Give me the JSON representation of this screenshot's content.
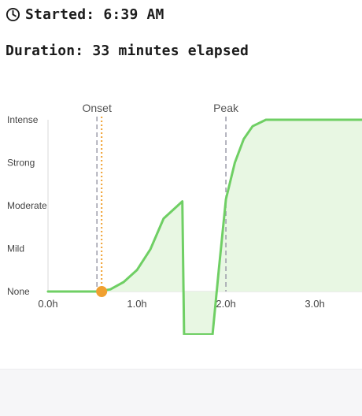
{
  "header": {
    "started_label": "Started: 6:39 AM",
    "duration_label": "Duration: 33 minutes elapsed",
    "clock_icon": "clock-icon"
  },
  "colors": {
    "curve": "#6fcf64",
    "fill": "#e8f7e3",
    "marker": "#f0a030",
    "marker_line": "#f0a030",
    "phase_line": "#9a9aa8",
    "axis": "#d8d8d8",
    "text": "#444444"
  },
  "chart_data": {
    "type": "line",
    "title": "",
    "xlabel": "",
    "ylabel": "",
    "x_ticks": [
      {
        "value": 0,
        "label": "0.0h"
      },
      {
        "value": 1,
        "label": "1.0h"
      },
      {
        "value": 2,
        "label": "2.0h"
      },
      {
        "value": 3,
        "label": "3.0h"
      }
    ],
    "y_levels": [
      "None",
      "Mild",
      "Moderate",
      "Strong",
      "Intense"
    ],
    "xlim": [
      0,
      3.53
    ],
    "ylim": [
      0,
      4
    ],
    "phase_lines": [
      {
        "label": "Onset",
        "x": 0.55
      },
      {
        "label": "Peak",
        "x": 2.0
      }
    ],
    "current_marker": {
      "x": 0.55,
      "y": 0,
      "label": ""
    },
    "series": [
      {
        "points": [
          [
            0,
            0
          ],
          [
            0.55,
            0
          ],
          [
            0.7,
            0.05
          ],
          [
            0.85,
            0.22
          ],
          [
            1.0,
            0.5
          ],
          [
            1.15,
            0.98
          ],
          [
            1.3,
            1.7
          ],
          [
            1.51,
            2.1
          ],
          [
            1.53,
            -1.0
          ],
          [
            1.85,
            -1.0
          ],
          [
            1.92,
            0.5
          ],
          [
            2.0,
            2.15
          ],
          [
            2.1,
            3.0
          ],
          [
            2.2,
            3.55
          ],
          [
            2.3,
            3.85
          ],
          [
            2.45,
            4.0
          ],
          [
            3.53,
            4.0
          ]
        ]
      }
    ]
  }
}
